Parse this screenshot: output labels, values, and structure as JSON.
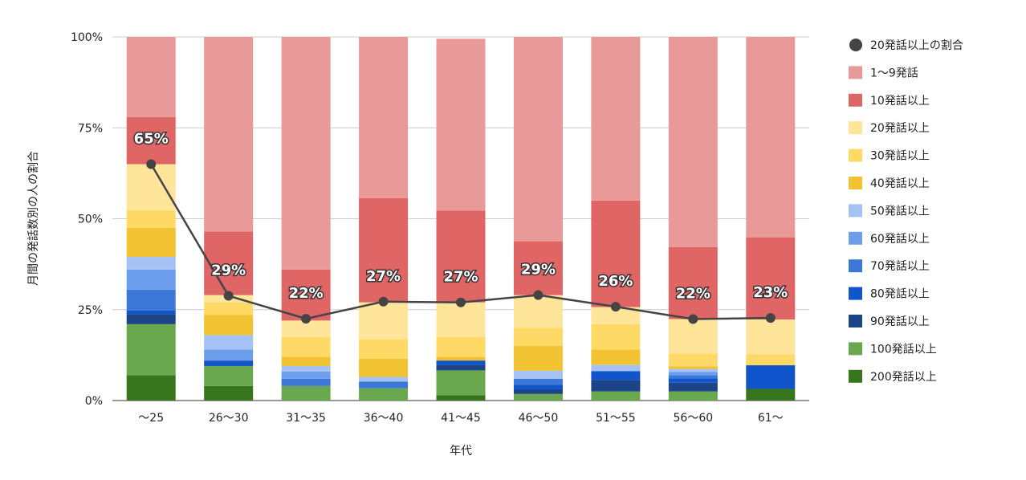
{
  "chart_data": {
    "type": "bar",
    "stacked": true,
    "normalized": true,
    "title": "",
    "xlabel": "年代",
    "ylabel": "月間の発話数別の人の割合",
    "ylim": [
      0,
      100
    ],
    "y_ticks": [
      "0%",
      "25%",
      "50%",
      "75%",
      "100%"
    ],
    "categories": [
      "〜25",
      "26〜30",
      "31〜35",
      "36〜40",
      "41〜45",
      "46〜50",
      "51〜55",
      "56〜60",
      "61〜"
    ],
    "series": [
      {
        "name": "200発話以上",
        "color": "#38761d",
        "values": [
          7,
          4,
          0,
          0,
          1.5,
          0,
          0,
          0,
          3.2
        ]
      },
      {
        "name": "100発話以上",
        "color": "#6aa84f",
        "values": [
          14,
          5.5,
          4,
          3.4,
          6.8,
          1.8,
          2.5,
          2.5,
          0
        ]
      },
      {
        "name": "90発話以上",
        "color": "#1c4587",
        "values": [
          2.8,
          0,
          0,
          0,
          1.5,
          1.3,
          3.2,
          2.4,
          0
        ]
      },
      {
        "name": "80発話以上",
        "color": "#1155cc",
        "values": [
          1,
          1.5,
          0,
          0,
          1.2,
          1.2,
          2.4,
          1.2,
          6.5
        ]
      },
      {
        "name": "70発話以上",
        "color": "#3c78d8",
        "values": [
          5.7,
          0,
          2,
          1.8,
          0,
          1.7,
          0,
          0.9,
          0
        ]
      },
      {
        "name": "60発話以上",
        "color": "#6d9eeb",
        "values": [
          5.5,
          3,
          2,
          0,
          0,
          0,
          0,
          0.9,
          0
        ]
      },
      {
        "name": "50発話以上",
        "color": "#a4c2f4",
        "values": [
          3.5,
          4,
          1.5,
          1.3,
          0,
          2.2,
          1.7,
          0.8,
          0
        ]
      },
      {
        "name": "40発話以上",
        "color": "#f1c232",
        "values": [
          8,
          5.5,
          2.5,
          5,
          1,
          6.8,
          4.2,
          0.7,
          0
        ]
      },
      {
        "name": "30発話以上",
        "color": "#ffd966",
        "values": [
          4.8,
          3.5,
          5.5,
          5.3,
          5.5,
          5,
          7,
          3.5,
          3
        ]
      },
      {
        "name": "20発話以上",
        "color": "#ffe599",
        "values": [
          12.7,
          2,
          4.5,
          10.2,
          9.5,
          9,
          4.7,
          9.5,
          9.6
        ]
      },
      {
        "name": "10発話以上",
        "color": "#e06666",
        "values": [
          13,
          17.5,
          14,
          28.7,
          25.2,
          14.8,
          29.3,
          19.8,
          22.6
        ]
      },
      {
        "name": "1〜9発話",
        "color": "#ea9999",
        "values": [
          22,
          53.5,
          64,
          44.3,
          47.3,
          56.2,
          45,
          57.8,
          55.1
        ]
      }
    ],
    "line": {
      "name": "20発話以上の割合",
      "color": "#444444",
      "values": [
        65,
        28.8,
        22.5,
        27.2,
        27,
        29,
        25.8,
        22.4,
        22.7
      ],
      "labels": [
        "65%",
        "29%",
        "22%",
        "27%",
        "27%",
        "29%",
        "26%",
        "22%",
        "23%"
      ]
    },
    "legend": {
      "position": "right",
      "entries": [
        "20発話以上の割合",
        "1〜9発話",
        "10発話以上",
        "20発話以上",
        "30発話以上",
        "40発話以上",
        "50発話以上",
        "60発話以上",
        "70発話以上",
        "80発話以上",
        "90発話以上",
        "100発話以上",
        "200発話以上"
      ]
    },
    "grid": true
  }
}
